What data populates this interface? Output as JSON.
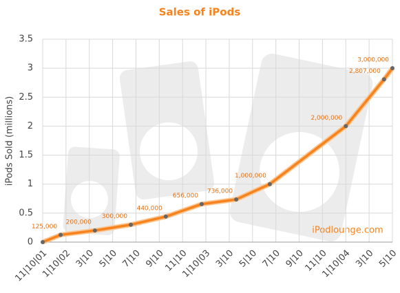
{
  "chart_data": {
    "type": "line",
    "title": "Sales of iPods",
    "y_label": "iPods Sold (millions)",
    "annotation": "iPodlounge.com",
    "x": [
      0,
      0.77,
      2.24,
      3.78,
      5.28,
      6.82,
      8.3,
      9.74,
      13,
      14.64,
      15
    ],
    "xlim": [
      0,
      15
    ],
    "xticks": [
      {
        "value": 0,
        "label": "11|10|01"
      },
      {
        "value": 1,
        "label": "1|10|02"
      },
      {
        "value": 2,
        "label": "3|10"
      },
      {
        "value": 3,
        "label": "5|10"
      },
      {
        "value": 4,
        "label": "7|10"
      },
      {
        "value": 5,
        "label": "9|10"
      },
      {
        "value": 6,
        "label": "11|10"
      },
      {
        "value": 7,
        "label": "1|10|03"
      },
      {
        "value": 8,
        "label": "3|10"
      },
      {
        "value": 9,
        "label": "5|10"
      },
      {
        "value": 10,
        "label": "7|10"
      },
      {
        "value": 11,
        "label": "9|10"
      },
      {
        "value": 12,
        "label": "11|10"
      },
      {
        "value": 13,
        "label": "1|10|04"
      },
      {
        "value": 14,
        "label": "3|10"
      },
      {
        "value": 15,
        "label": "5|10"
      }
    ],
    "series": [
      {
        "name": "iPods Sold",
        "color": "#f7831f",
        "marker_color": "#666666",
        "values": [
          0,
          0.125,
          0.2,
          0.3,
          0.44,
          0.656,
          0.736,
          1,
          2,
          2.807,
          3
        ],
        "value_labels": [
          null,
          "125,000",
          "200,000",
          "300,000",
          "440,000",
          "656,000",
          "736,000",
          "1,000,000",
          "2,000,000",
          "2,807,000",
          "3,000,000"
        ]
      }
    ],
    "ylim": [
      0,
      3.5
    ],
    "yticks": [
      0,
      0.5,
      1,
      1.5,
      2,
      2.5,
      3,
      3.5
    ],
    "grid": true
  }
}
